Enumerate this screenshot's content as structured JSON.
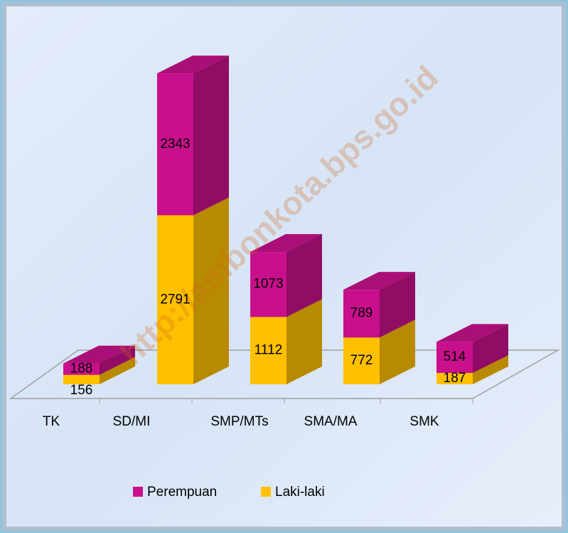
{
  "chart_data": {
    "type": "bar3d_stacked",
    "categories": [
      "TK",
      "SD/MI",
      "SMP/MTs",
      "SMA/MA",
      "SMK"
    ],
    "series": [
      {
        "name": "Laki-laki",
        "color": "#ffc000",
        "values": [
          156,
          2791,
          1112,
          772,
          187
        ]
      },
      {
        "name": "Perempuan",
        "color": "#c8108c",
        "values": [
          188,
          2343,
          1073,
          789,
          514
        ]
      }
    ],
    "watermark": "http://ambonkota.bps.go.id"
  }
}
